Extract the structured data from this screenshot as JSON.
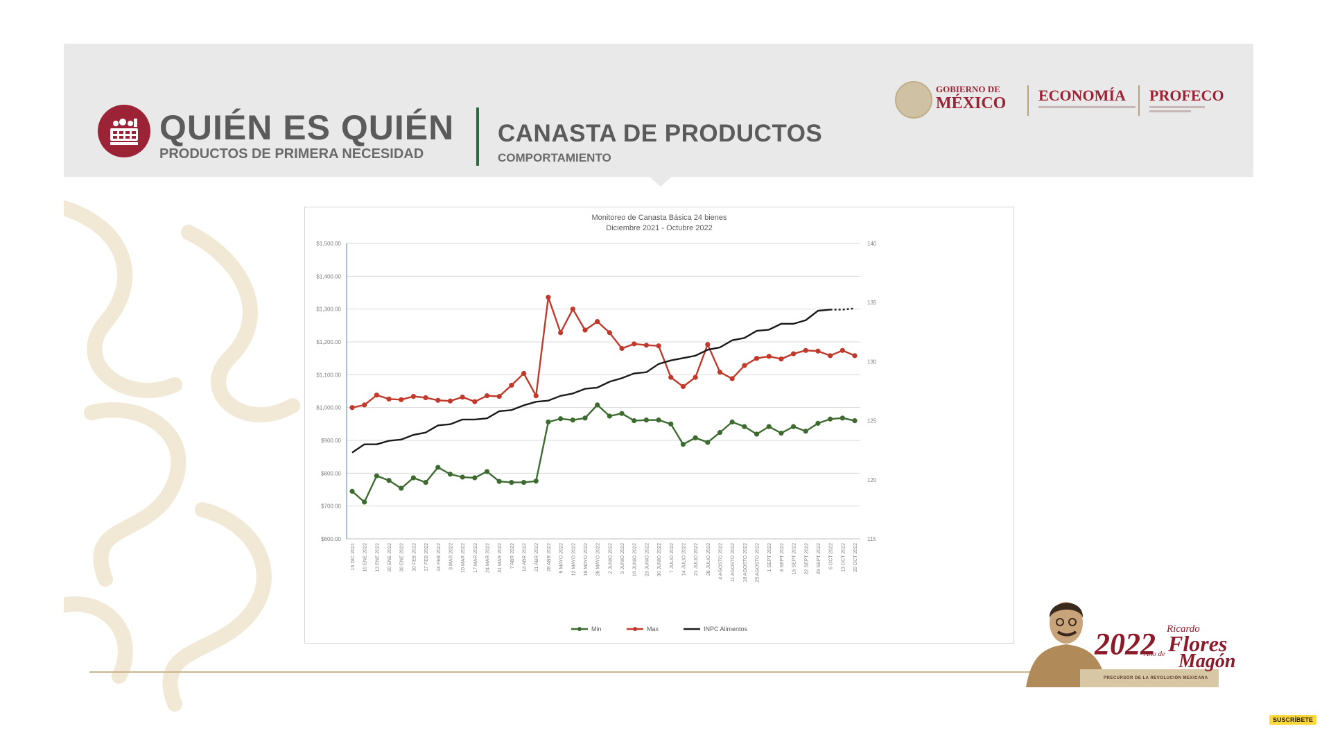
{
  "header": {
    "title_main": "QUIÉN ES QUIÉN",
    "title_sub": "PRODUCTOS DE PRIMERA NECESIDAD",
    "section_title": "CANASTA DE PRODUCTOS",
    "section_sub": "COMPORTAMIENTO",
    "gov_line1": "GOBIERNO DE",
    "gov_line2": "MÉXICO",
    "economia": "ECONOMÍA",
    "profeco": "PROFECO"
  },
  "footer": {
    "year": "2022",
    "year_small": "Año de",
    "name_first": "Ricardo",
    "name_flores": "Flores",
    "name_magon": "Magón",
    "caption": "PRECURSOR DE LA REVOLUCIÓN MEXICANA",
    "subscribe": "SUSCRÍBETE"
  },
  "colors": {
    "brand": "#9b2335",
    "green_rule": "#2d6a3e",
    "min_series": "#3d6b2f",
    "max_series": "#c0392b",
    "inpc_series": "#1a1a1a"
  },
  "icons": {
    "logo": "shopping-basket-icon",
    "seal": "mexico-seal-icon"
  },
  "chart_data": {
    "type": "line",
    "title": "Monitoreo de Canasta Básica 24 bienes",
    "subtitle": "Diciembre 2021 - Octubre 2022",
    "xlabel": "",
    "ylabel": "",
    "ylim": [
      600,
      1500
    ],
    "y_ticks": [
      "$1,500.00",
      "$1,400.00",
      "$1,300.00",
      "$1,200.00",
      "$1,100.00",
      "$1,000.00",
      "$900.00",
      "$800.00",
      "$700.00",
      "$600.00"
    ],
    "y2lim": [
      115,
      140
    ],
    "y2_ticks": [
      "140",
      "135",
      "130",
      "125",
      "120",
      "115"
    ],
    "grid": true,
    "legend_position": "bottom",
    "categories": [
      "16 DIC 2021",
      "10 ENE 2022",
      "13 ENE 2022",
      "20 ENE 2022",
      "30 ENE 2022",
      "10 FEB 2022",
      "17 FEB 2022",
      "24 FEB 2022",
      "3 MAR 2022",
      "10 MAR 2022",
      "17 MAR 2022",
      "24 MAR 2022",
      "31 MAR 2022",
      "7 ABR 2022",
      "14 ABR 2022",
      "21 ABR 2022",
      "28 ABR 2022",
      "5 MAYO 2022",
      "12 MAYO 2022",
      "19 MAYO 2022",
      "26 MAYO 2022",
      "2 JUNIO 2022",
      "9 JUNIO 2022",
      "16 JUNIO 2022",
      "23 JUNIO 2022",
      "30 JUNIO 2022",
      "7 JULIO 2022",
      "14 JULIO 2022",
      "21 JULIO 2022",
      "28 JULIO 2022",
      "4 AGOSTO 2022",
      "11 AGOSTO 2022",
      "18 AGOSTO 2022",
      "25 AGOSTO 2022",
      "1 SEPT 2022",
      "8 SEPT 2022",
      "15 SEPT 2022",
      "22 SEPT 2022",
      "29 SEPT 2022",
      "6 OCT 2022",
      "13 OCT 2022",
      "20 OCT 2022"
    ],
    "series": [
      {
        "name": "Min",
        "axis": "left",
        "color": "#3d6b2f",
        "values": [
          745,
          712,
          792,
          778,
          754,
          786,
          772,
          818,
          797,
          788,
          786,
          805,
          775,
          772,
          772,
          776,
          956,
          966,
          962,
          968,
          1008,
          974,
          982,
          960,
          962,
          962,
          950,
          888,
          908,
          894,
          924,
          956,
          942,
          919,
          942,
          922,
          942,
          928,
          952,
          965,
          968,
          960
        ]
      },
      {
        "name": "Max",
        "axis": "left",
        "color": "#c0392b",
        "values": [
          1000,
          1008,
          1038,
          1026,
          1024,
          1034,
          1030,
          1022,
          1020,
          1032,
          1018,
          1036,
          1034,
          1068,
          1104,
          1036,
          1336,
          1228,
          1300,
          1236,
          1262,
          1228,
          1180,
          1194,
          1190,
          1188,
          1092,
          1064,
          1092,
          1192,
          1108,
          1088,
          1128,
          1150,
          1156,
          1148,
          1164,
          1174,
          1172,
          1158,
          1174,
          1158
        ]
      },
      {
        "name": "INPC Alimentos",
        "axis": "right",
        "color": "#1a1a1a",
        "values": [
          122.3,
          123.0,
          123.0,
          123.3,
          123.4,
          123.8,
          124.0,
          124.6,
          124.7,
          125.1,
          125.1,
          125.2,
          125.8,
          125.9,
          126.3,
          126.6,
          126.7,
          127.1,
          127.3,
          127.7,
          127.8,
          128.3,
          128.6,
          129.0,
          129.1,
          129.8,
          130.1,
          130.3,
          130.5,
          131.0,
          131.2,
          131.8,
          132.0,
          132.6,
          132.7,
          133.2,
          133.2,
          133.5,
          134.3,
          134.4,
          134.4,
          134.5
        ]
      }
    ]
  }
}
